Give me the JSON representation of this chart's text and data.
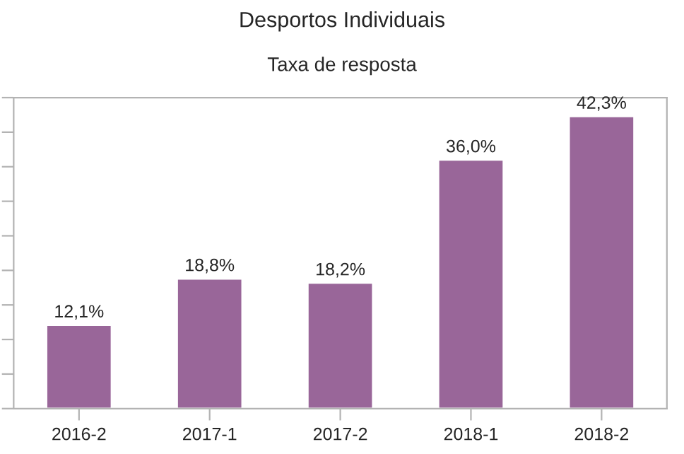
{
  "chart_data": {
    "type": "bar",
    "title": "Desportos Individuais",
    "subtitle": "Taxa de resposta",
    "categories": [
      "2016-2",
      "2017-1",
      "2017-2",
      "2018-1",
      "2018-2"
    ],
    "values": [
      12.1,
      18.8,
      18.2,
      36.0,
      42.3
    ],
    "value_labels": [
      "12,1%",
      "18,8%",
      "18,2%",
      "36,0%",
      "42,3%"
    ],
    "color": "#996699",
    "ylim": [
      0,
      45
    ],
    "yticks": [
      {
        "value": 0,
        "label": null
      },
      {
        "value": 5,
        "label": null
      },
      {
        "value": 10,
        "label": null
      },
      {
        "value": 15,
        "label": null
      },
      {
        "value": 20,
        "label": null
      },
      {
        "value": 25,
        "label": null
      },
      {
        "value": 30,
        "label": null
      },
      {
        "value": 35,
        "label": null
      },
      {
        "value": 40,
        "label": null
      },
      {
        "value": 45,
        "label": null
      }
    ],
    "tick_labels": "x",
    "grid": false,
    "legend": false
  }
}
